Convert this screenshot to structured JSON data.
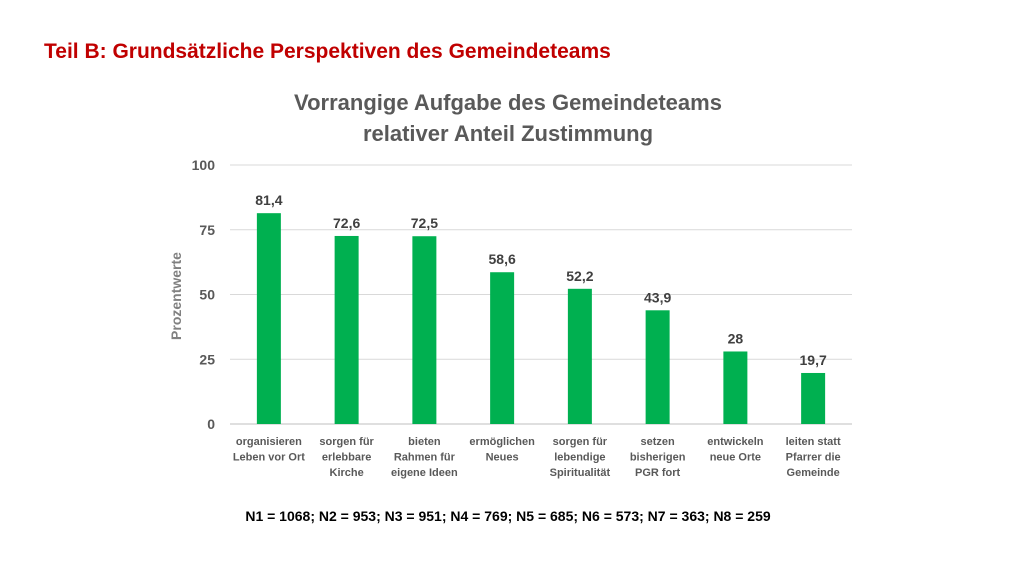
{
  "slide": {
    "title": "Teil B: Grundsätzliche Perspektiven des Gemeindeteams"
  },
  "chart_data": {
    "type": "bar",
    "title": "Vorrangige Aufgabe des Gemeindeteams",
    "subtitle": "relativer Anteil Zustimmung",
    "ylabel": "Prozentwerte",
    "xlabel": "",
    "ylim": [
      0,
      100
    ],
    "yticks": [
      "0",
      "25",
      "50",
      "75",
      "100"
    ],
    "grid": true,
    "legend": "none",
    "categories": [
      [
        "organisieren",
        "Leben vor Ort"
      ],
      [
        "sorgen für",
        "erlebbare",
        "Kirche"
      ],
      [
        "bieten",
        "Rahmen für",
        "eigene Ideen"
      ],
      [
        "ermöglichen",
        "Neues"
      ],
      [
        "sorgen für",
        "lebendige",
        "Spiritualität"
      ],
      [
        "setzen",
        "bisherigen",
        "PGR fort"
      ],
      [
        "entwickeln",
        "neue Orte"
      ],
      [
        "leiten statt",
        "Pfarrer die",
        "Gemeinde"
      ]
    ],
    "values": [
      81.4,
      72.6,
      72.5,
      58.6,
      52.2,
      43.9,
      28,
      19.7
    ],
    "value_labels": [
      "81,4",
      "72,6",
      "72,5",
      "58,6",
      "52,2",
      "43,9",
      "28",
      "19,7"
    ],
    "bar_color": "#00b050",
    "footnote": "N1 = 1068; N2 = 953; N3 = 951; N4 = 769; N5 = 685; N6 = 573; N7 = 363; N8 = 259"
  }
}
